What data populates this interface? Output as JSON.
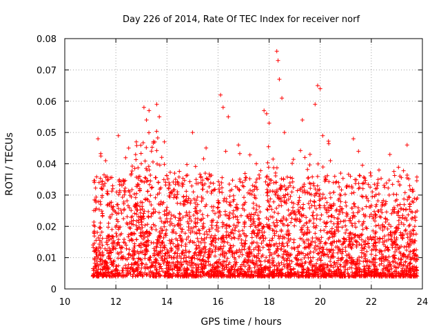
{
  "chart_data": {
    "type": "scatter",
    "title": "Day 226 of 2014, Rate Of TEC Index for receiver norf",
    "xlabel": "GPS time / hours",
    "ylabel": "ROTI / TECUs",
    "xlim": [
      10,
      24
    ],
    "ylim": [
      0,
      0.08
    ],
    "xticks": [
      "10",
      "12",
      "14",
      "16",
      "18",
      "20",
      "22",
      "24"
    ],
    "yticks": [
      "0",
      "0.01",
      "0.02",
      "0.03",
      "0.04",
      "0.05",
      "0.06",
      "0.07",
      "0.08"
    ],
    "grid": true,
    "marker": "+",
    "color": "#ff0000",
    "series": [
      {
        "name": "ROTI",
        "x_range": [
          11.1,
          23.8
        ],
        "typical_range": [
          0.004,
          0.03
        ],
        "points": [
          [
            11.3,
            0.048
          ],
          [
            11.6,
            0.041
          ],
          [
            12.1,
            0.049
          ],
          [
            12.5,
            0.045
          ],
          [
            12.8,
            0.047
          ],
          [
            13.1,
            0.058
          ],
          [
            13.2,
            0.054
          ],
          [
            13.3,
            0.057
          ],
          [
            13.6,
            0.059
          ],
          [
            13.7,
            0.055
          ],
          [
            13.9,
            0.047
          ],
          [
            14.3,
            0.037
          ],
          [
            15.0,
            0.05
          ],
          [
            15.5,
            0.037
          ],
          [
            16.1,
            0.062
          ],
          [
            16.2,
            0.058
          ],
          [
            16.3,
            0.044
          ],
          [
            16.4,
            0.055
          ],
          [
            16.8,
            0.046
          ],
          [
            17.5,
            0.04
          ],
          [
            17.8,
            0.057
          ],
          [
            17.9,
            0.056
          ],
          [
            18.0,
            0.053
          ],
          [
            18.3,
            0.076
          ],
          [
            18.35,
            0.073
          ],
          [
            18.4,
            0.067
          ],
          [
            18.5,
            0.061
          ],
          [
            18.6,
            0.05
          ],
          [
            19.3,
            0.054
          ],
          [
            19.4,
            0.042
          ],
          [
            19.6,
            0.043
          ],
          [
            19.8,
            0.059
          ],
          [
            19.9,
            0.065
          ],
          [
            20.0,
            0.064
          ],
          [
            20.1,
            0.049
          ],
          [
            20.4,
            0.041
          ],
          [
            20.8,
            0.037
          ],
          [
            21.3,
            0.048
          ],
          [
            21.5,
            0.044
          ],
          [
            22.3,
            0.038
          ],
          [
            22.7,
            0.03
          ],
          [
            23.4,
            0.046
          ],
          [
            23.5,
            0.033
          ],
          [
            23.6,
            0.028
          ],
          [
            23.7,
            0.02
          ]
        ]
      }
    ]
  }
}
